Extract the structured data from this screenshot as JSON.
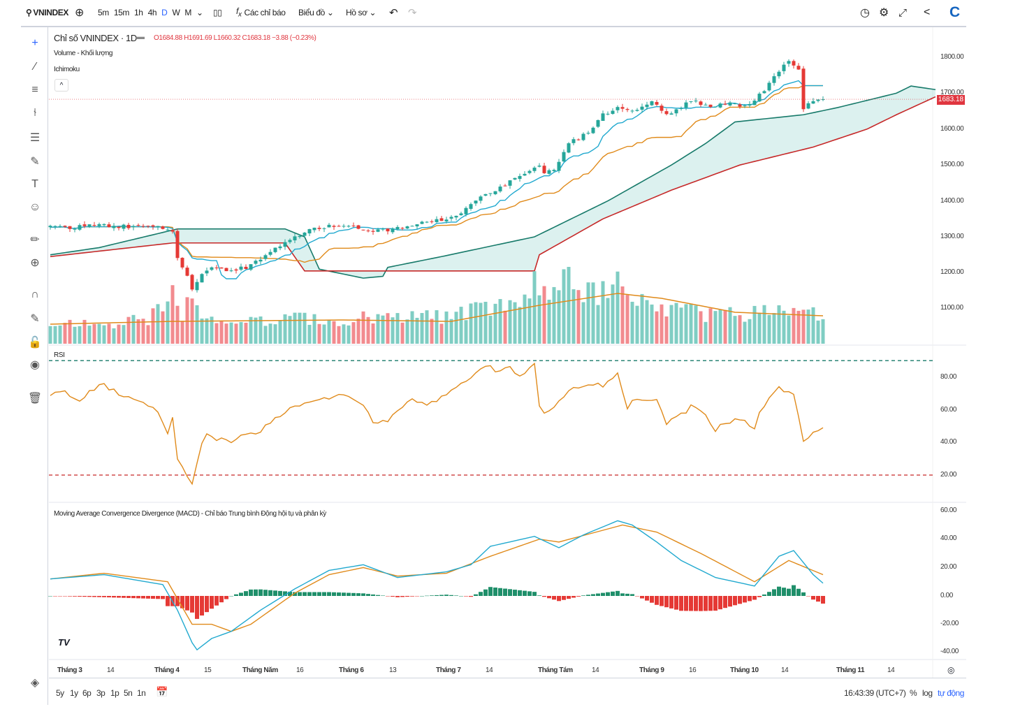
{
  "toolbar": {
    "symbol": "VNINDEX",
    "intervals": [
      "5m",
      "15m",
      "1h",
      "4h",
      "D",
      "W",
      "M"
    ],
    "active_interval": "D",
    "indicators": "Các chỉ báo",
    "chart_menu": "Biểu đồ",
    "profile_menu": "Hồ sơ"
  },
  "legend": {
    "title": "Chỉ số VNINDEX · 1D",
    "ohlc": "O1684.88 H1691.69 L1660.32 C1683.18 −3.88 (−0.23%)",
    "volume": "Volume - Khối lượng",
    "ichimoku": "Ichimoku",
    "collapse": "^"
  },
  "rsi_label": "RSI",
  "macd_label": "Moving Average Convergence Divergence (MACD) - Chỉ báo Trung bình Động hội tụ và phân kỳ",
  "price_axis": [
    "1800.00",
    "1700.00",
    "1600.00",
    "1500.00",
    "1400.00",
    "1300.00",
    "1200.00",
    "1100.00"
  ],
  "last_price": "1683.18",
  "rsi_axis": [
    "80.00",
    "60.00",
    "40.00",
    "20.00"
  ],
  "macd_axis": [
    "60.00",
    "40.00",
    "20.00",
    "0.00",
    "-20.00",
    "-40.00"
  ],
  "time_axis": [
    "Tháng 3",
    "14",
    "Tháng 4",
    "15",
    "Tháng Năm",
    "16",
    "Tháng 6",
    "13",
    "Tháng 7",
    "14",
    "Tháng Tám",
    "14",
    "Tháng 9",
    "16",
    "Tháng 10",
    "14",
    "Tháng 11",
    "14"
  ],
  "ranges": [
    "5y",
    "1y",
    "6p",
    "3p",
    "1p",
    "5n",
    "1n"
  ],
  "footer": {
    "time": "16:43:39 (UTC+7)",
    "percent": "%",
    "log": "log",
    "auto": "tự động"
  },
  "logo": "TV",
  "colors": {
    "up": "#26a69a",
    "down": "#e53935",
    "tenkan": "#21a9cf",
    "kijun": "#e08a1a",
    "spanA": "#177a6a",
    "spanB": "#c62828",
    "cloud": "#80cbc4"
  },
  "chart_data": {
    "type": "candlestick",
    "title": "Chỉ số VNINDEX · 1D",
    "bars": 159,
    "close_points": [
      [
        0,
        1330
      ],
      [
        4,
        1325
      ],
      [
        9,
        1335
      ],
      [
        13,
        1330
      ],
      [
        17,
        1328
      ],
      [
        21,
        1330
      ],
      [
        25,
        1318
      ],
      [
        26,
        1240
      ],
      [
        28,
        1190
      ],
      [
        29,
        1150
      ],
      [
        31,
        1200
      ],
      [
        33,
        1220
      ],
      [
        36,
        1205
      ],
      [
        40,
        1215
      ],
      [
        44,
        1250
      ],
      [
        49,
        1290
      ],
      [
        53,
        1320
      ],
      [
        57,
        1330
      ],
      [
        61,
        1335
      ],
      [
        66,
        1315
      ],
      [
        70,
        1320
      ],
      [
        74,
        1335
      ],
      [
        79,
        1345
      ],
      [
        83,
        1355
      ],
      [
        87,
        1400
      ],
      [
        91,
        1430
      ],
      [
        96,
        1470
      ],
      [
        100,
        1500
      ],
      [
        101,
        1480
      ],
      [
        103,
        1490
      ],
      [
        106,
        1560
      ],
      [
        110,
        1590
      ],
      [
        113,
        1640
      ],
      [
        116,
        1660
      ],
      [
        119,
        1650
      ],
      [
        123,
        1680
      ],
      [
        126,
        1640
      ],
      [
        129,
        1660
      ],
      [
        131,
        1680
      ],
      [
        134,
        1665
      ],
      [
        139,
        1670
      ],
      [
        143,
        1665
      ],
      [
        146,
        1710
      ],
      [
        149,
        1760
      ],
      [
        151,
        1790
      ],
      [
        153,
        1770
      ],
      [
        154,
        1660
      ],
      [
        156,
        1680
      ],
      [
        158,
        1683.18
      ]
    ],
    "span_a_points": [
      [
        0,
        1250
      ],
      [
        10,
        1270
      ],
      [
        26,
        1322
      ],
      [
        48,
        1322
      ],
      [
        52,
        1300
      ],
      [
        55,
        1210
      ],
      [
        64,
        1185
      ],
      [
        68,
        1190
      ],
      [
        69,
        1215
      ],
      [
        80,
        1245
      ],
      [
        99,
        1300
      ],
      [
        114,
        1400
      ],
      [
        127,
        1500
      ],
      [
        134,
        1560
      ],
      [
        140,
        1620
      ],
      [
        154,
        1640
      ],
      [
        161,
        1660
      ],
      [
        173,
        1700
      ],
      [
        176,
        1720
      ],
      [
        181,
        1710
      ]
    ],
    "span_b_points": [
      [
        0,
        1245
      ],
      [
        25,
        1283
      ],
      [
        48,
        1283
      ],
      [
        52,
        1205
      ],
      [
        99,
        1205
      ],
      [
        100,
        1250
      ],
      [
        113,
        1350
      ],
      [
        127,
        1430
      ],
      [
        141,
        1500
      ],
      [
        156,
        1550
      ],
      [
        167,
        1600
      ],
      [
        173,
        1640
      ],
      [
        181,
        1690
      ]
    ],
    "volume_points": [
      [
        0,
        30
      ],
      [
        20,
        32
      ],
      [
        25,
        70
      ],
      [
        27,
        45
      ],
      [
        29,
        60
      ],
      [
        31,
        35
      ],
      [
        60,
        35
      ],
      [
        80,
        40
      ],
      [
        95,
        55
      ],
      [
        100,
        95
      ],
      [
        102,
        60
      ],
      [
        105,
        100
      ],
      [
        110,
        70
      ],
      [
        113,
        80
      ],
      [
        116,
        90
      ],
      [
        120,
        60
      ],
      [
        130,
        45
      ],
      [
        140,
        40
      ],
      [
        150,
        45
      ],
      [
        153,
        65
      ],
      [
        158,
        38
      ]
    ],
    "volume_ma_points": [
      [
        0,
        28
      ],
      [
        25,
        32
      ],
      [
        60,
        34
      ],
      [
        82,
        32
      ],
      [
        100,
        55
      ],
      [
        116,
        72
      ],
      [
        125,
        65
      ],
      [
        140,
        45
      ],
      [
        158,
        40
      ]
    ],
    "rsi_points": [
      [
        0,
        70
      ],
      [
        3,
        71
      ],
      [
        6,
        64
      ],
      [
        8,
        72
      ],
      [
        11,
        75
      ],
      [
        13,
        72
      ],
      [
        15,
        68
      ],
      [
        19,
        65
      ],
      [
        22,
        58
      ],
      [
        24,
        46
      ],
      [
        25,
        55
      ],
      [
        26,
        31
      ],
      [
        28,
        18
      ],
      [
        29,
        14
      ],
      [
        31,
        38
      ],
      [
        32,
        44
      ],
      [
        36,
        41
      ],
      [
        37,
        39
      ],
      [
        40,
        45
      ],
      [
        43,
        47
      ],
      [
        47,
        56
      ],
      [
        50,
        62
      ],
      [
        53,
        66
      ],
      [
        56,
        67
      ],
      [
        59,
        69
      ],
      [
        61,
        68
      ],
      [
        64,
        62
      ],
      [
        66,
        52
      ],
      [
        69,
        53
      ],
      [
        71,
        60
      ],
      [
        74,
        66
      ],
      [
        77,
        63
      ],
      [
        80,
        68
      ],
      [
        84,
        75
      ],
      [
        90,
        88
      ],
      [
        91,
        84
      ],
      [
        94,
        86
      ],
      [
        96,
        81
      ],
      [
        99,
        87
      ],
      [
        100,
        62
      ],
      [
        101,
        58
      ],
      [
        104,
        65
      ],
      [
        106,
        72
      ],
      [
        111,
        76
      ],
      [
        113,
        74
      ],
      [
        116,
        83
      ],
      [
        118,
        60
      ],
      [
        119,
        67
      ],
      [
        124,
        67
      ],
      [
        126,
        51
      ],
      [
        130,
        59
      ],
      [
        131,
        63
      ],
      [
        134,
        57
      ],
      [
        136,
        47
      ],
      [
        137,
        52
      ],
      [
        140,
        53
      ],
      [
        142,
        52
      ],
      [
        144,
        48
      ],
      [
        145,
        59
      ],
      [
        149,
        73
      ],
      [
        152,
        70
      ],
      [
        154,
        40
      ],
      [
        156,
        47
      ],
      [
        158,
        49
      ]
    ],
    "rsi_bands": [
      90,
      20
    ],
    "macd_points": [
      [
        0,
        12
      ],
      [
        11,
        15
      ],
      [
        23,
        8
      ],
      [
        26,
        -10
      ],
      [
        29,
        -33
      ],
      [
        30,
        -38
      ],
      [
        33,
        -30
      ],
      [
        37,
        -25
      ],
      [
        43,
        -10
      ],
      [
        50,
        5
      ],
      [
        57,
        18
      ],
      [
        64,
        22
      ],
      [
        71,
        13
      ],
      [
        81,
        17
      ],
      [
        86,
        22
      ],
      [
        90,
        35
      ],
      [
        99,
        42
      ],
      [
        104,
        34
      ],
      [
        109,
        43
      ],
      [
        116,
        53
      ],
      [
        119,
        50
      ],
      [
        124,
        38
      ],
      [
        129,
        25
      ],
      [
        136,
        13
      ],
      [
        144,
        7
      ],
      [
        149,
        28
      ],
      [
        152,
        32
      ],
      [
        156,
        15
      ],
      [
        158,
        9
      ]
    ],
    "signal_points": [
      [
        0,
        12
      ],
      [
        11,
        16
      ],
      [
        24,
        10
      ],
      [
        29,
        -20
      ],
      [
        33,
        -20
      ],
      [
        37,
        -25
      ],
      [
        41,
        -20
      ],
      [
        50,
        2
      ],
      [
        57,
        15
      ],
      [
        64,
        20
      ],
      [
        71,
        14
      ],
      [
        81,
        16
      ],
      [
        90,
        28
      ],
      [
        100,
        40
      ],
      [
        104,
        38
      ],
      [
        117,
        50
      ],
      [
        124,
        45
      ],
      [
        133,
        30
      ],
      [
        144,
        10
      ],
      [
        151,
        25
      ],
      [
        158,
        15
      ]
    ],
    "price_range": [
      1100,
      1800
    ],
    "rsi_range": [
      20,
      80
    ],
    "macd_range": [
      -40,
      60
    ]
  }
}
